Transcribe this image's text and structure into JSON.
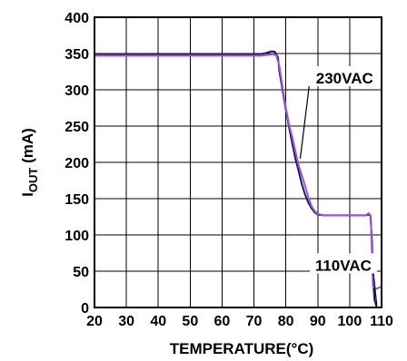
{
  "chart_data": {
    "type": "line",
    "title": "",
    "xlabel": "TEMPERATURE(°C)",
    "ylabel": {
      "prefix": "I",
      "subscript": "OUT",
      "suffix": " (mA)"
    },
    "xlim": [
      20,
      110
    ],
    "ylim": [
      0,
      400
    ],
    "xticks": [
      20,
      30,
      40,
      50,
      60,
      70,
      80,
      90,
      100,
      110
    ],
    "yticks": [
      0,
      50,
      100,
      150,
      200,
      250,
      300,
      350,
      400
    ],
    "grid": true,
    "series": [
      {
        "name": "110VAC",
        "color": "#1a1a6e",
        "points": [
          [
            20,
            349
          ],
          [
            40,
            349
          ],
          [
            60,
            349
          ],
          [
            72,
            349
          ],
          [
            74,
            351
          ],
          [
            75.5,
            353
          ],
          [
            76.5,
            352.5
          ],
          [
            77.5,
            345
          ],
          [
            78,
            325
          ],
          [
            79,
            298
          ],
          [
            80,
            272
          ],
          [
            81,
            248
          ],
          [
            82,
            226
          ],
          [
            83,
            205
          ],
          [
            84,
            188
          ],
          [
            85,
            170
          ],
          [
            86,
            156
          ],
          [
            87,
            145
          ],
          [
            88,
            137
          ],
          [
            89,
            131
          ],
          [
            90,
            128
          ],
          [
            92,
            127
          ],
          [
            100,
            127
          ],
          [
            105,
            127
          ],
          [
            105.8,
            128
          ],
          [
            106.5,
            127
          ],
          [
            107,
            90
          ],
          [
            107.3,
            40
          ],
          [
            107.8,
            10
          ],
          [
            108.5,
            0
          ]
        ]
      },
      {
        "name": "230VAC",
        "color": "#9955dd",
        "points": [
          [
            20,
            347
          ],
          [
            40,
            347
          ],
          [
            60,
            347
          ],
          [
            72,
            347
          ],
          [
            74,
            348
          ],
          [
            76,
            349
          ],
          [
            77,
            347.5
          ],
          [
            78,
            332
          ],
          [
            79,
            302
          ],
          [
            80,
            275
          ],
          [
            81,
            252
          ],
          [
            82,
            235
          ],
          [
            83,
            215
          ],
          [
            84,
            196
          ],
          [
            85,
            182
          ],
          [
            86,
            168
          ],
          [
            87,
            153
          ],
          [
            88,
            140
          ],
          [
            89,
            133
          ],
          [
            90,
            129
          ],
          [
            92,
            127
          ],
          [
            100,
            127
          ],
          [
            105,
            127
          ],
          [
            106,
            130
          ],
          [
            106.6,
            126
          ],
          [
            107,
            70
          ],
          [
            107.3,
            30
          ],
          [
            107.8,
            27
          ],
          [
            108.5,
            26
          ],
          [
            109.5,
            28
          ],
          [
            111,
            30
          ]
        ]
      }
    ],
    "annotations": [
      {
        "id": "230",
        "text": "230VAC",
        "target": [
          84.5,
          205
        ],
        "label_at": [
          89,
          315
        ]
      },
      {
        "id": "110",
        "text": "110VAC",
        "target": [
          108.5,
          3
        ],
        "label_at": [
          98,
          57
        ]
      }
    ]
  }
}
